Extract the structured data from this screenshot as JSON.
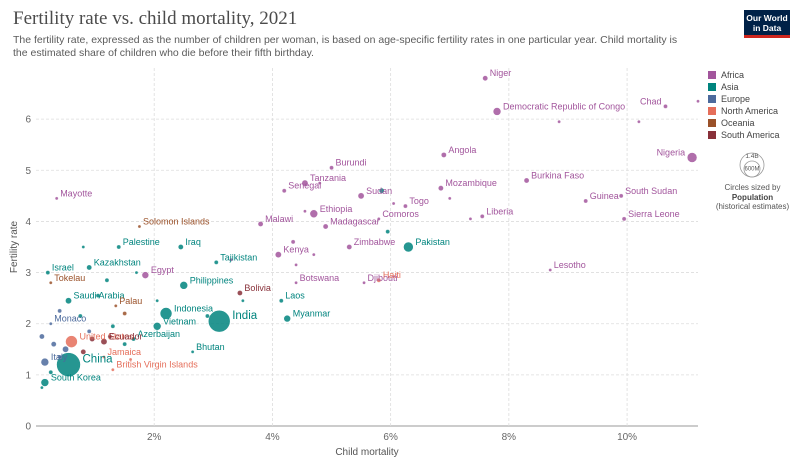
{
  "header": {
    "title": "Fertility rate vs. child mortality, 2021",
    "subtitle": "The fertility rate, expressed as the number of children per woman, is based on age-specific fertility rates in one particular year. Child mortality is the estimated share of children who die before their fifth birthday.",
    "logo_line1": "Our World",
    "logo_line2": "in Data"
  },
  "legend": {
    "items": [
      {
        "label": "Africa",
        "color": "#a2559c"
      },
      {
        "label": "Asia",
        "color": "#00847e"
      },
      {
        "label": "Europe",
        "color": "#4c6a9c"
      },
      {
        "label": "North America",
        "color": "#e56e5a"
      },
      {
        "label": "Oceania",
        "color": "#9a5129"
      },
      {
        "label": "South America",
        "color": "#883039"
      }
    ],
    "size_big": "1.4B",
    "size_small": "600M",
    "size_caption": "Circles sized by",
    "size_var": "Population",
    "size_note": "(historical estimates)"
  },
  "chart_data": {
    "type": "scatter",
    "xlabel": "Child mortality",
    "ylabel": "Fertility rate",
    "xlim": [
      0.0,
      11.2
    ],
    "ylim": [
      0,
      7
    ],
    "xticks": [
      {
        "value": 2,
        "label": "2%"
      },
      {
        "value": 4,
        "label": "4%"
      },
      {
        "value": 6,
        "label": "6%"
      },
      {
        "value": 8,
        "label": "8%"
      },
      {
        "value": 10,
        "label": "10%"
      }
    ],
    "yticks": [
      0,
      1,
      2,
      3,
      4,
      5,
      6
    ],
    "grid": true,
    "points": [
      {
        "label": "Niger",
        "x": 7.6,
        "y": 6.8,
        "r": 2.5,
        "region": "Africa"
      },
      {
        "label": "Democratic Republic of Congo",
        "x": 7.8,
        "y": 6.15,
        "r": 4,
        "region": "Africa"
      },
      {
        "label": "Chad",
        "x": 10.65,
        "y": 6.25,
        "r": 2,
        "region": "Africa"
      },
      {
        "label": "Nigeria",
        "x": 11.1,
        "y": 5.25,
        "r": 5,
        "region": "Africa"
      },
      {
        "label": "Angola",
        "x": 6.9,
        "y": 5.3,
        "r": 2.5,
        "region": "Africa"
      },
      {
        "label": "Burundi",
        "x": 5.0,
        "y": 5.05,
        "r": 2,
        "region": "Africa"
      },
      {
        "label": "Burkina Faso",
        "x": 8.3,
        "y": 4.8,
        "r": 2.5,
        "region": "Africa"
      },
      {
        "label": "Tanzania",
        "x": 4.55,
        "y": 4.75,
        "r": 3,
        "region": "Africa"
      },
      {
        "label": "Mozambique",
        "x": 6.85,
        "y": 4.65,
        "r": 2.5,
        "region": "Africa"
      },
      {
        "label": "Sudan",
        "x": 5.5,
        "y": 4.5,
        "r": 3,
        "region": "Africa"
      },
      {
        "label": "Senegal",
        "x": 4.2,
        "y": 4.6,
        "r": 2,
        "region": "Africa"
      },
      {
        "label": "Mayotte",
        "x": 0.35,
        "y": 4.45,
        "r": 1.5,
        "region": "Africa"
      },
      {
        "label": "Guinea",
        "x": 9.3,
        "y": 4.4,
        "r": 2,
        "region": "Africa"
      },
      {
        "label": "South Sudan",
        "x": 9.9,
        "y": 4.5,
        "r": 2,
        "region": "Africa"
      },
      {
        "label": "Togo",
        "x": 6.25,
        "y": 4.3,
        "r": 2,
        "region": "Africa"
      },
      {
        "label": "Ethiopia",
        "x": 4.7,
        "y": 4.15,
        "r": 4,
        "region": "Africa"
      },
      {
        "label": "Liberia",
        "x": 7.55,
        "y": 4.1,
        "r": 2,
        "region": "Africa"
      },
      {
        "label": "Comoros",
        "x": 5.8,
        "y": 4.05,
        "r": 1.5,
        "region": "Africa"
      },
      {
        "label": "Malawi",
        "x": 3.8,
        "y": 3.95,
        "r": 2.5,
        "region": "Africa"
      },
      {
        "label": "Madagascar",
        "x": 4.9,
        "y": 3.9,
        "r": 2.5,
        "region": "Africa"
      },
      {
        "label": "Sierra Leone",
        "x": 9.95,
        "y": 4.05,
        "r": 2,
        "region": "Africa"
      },
      {
        "label": "Zimbabwe",
        "x": 5.3,
        "y": 3.5,
        "r": 2.5,
        "region": "Africa"
      },
      {
        "label": "Kenya",
        "x": 4.1,
        "y": 3.35,
        "r": 3,
        "region": "Africa"
      },
      {
        "label": "Egypt",
        "x": 1.85,
        "y": 2.95,
        "r": 3.5,
        "region": "Africa"
      },
      {
        "label": "Lesotho",
        "x": 8.7,
        "y": 3.05,
        "r": 1.5,
        "region": "Africa"
      },
      {
        "label": "Botswana",
        "x": 4.4,
        "y": 2.8,
        "r": 1.5,
        "region": "Africa"
      },
      {
        "label": "Djibouti",
        "x": 5.55,
        "y": 2.8,
        "r": 1.5,
        "region": "Africa"
      },
      {
        "label": "Pakistan",
        "x": 6.3,
        "y": 3.5,
        "r": 5,
        "region": "Asia"
      },
      {
        "label": "India",
        "x": 3.1,
        "y": 2.05,
        "r": 11,
        "region": "Asia"
      },
      {
        "label": "China",
        "x": 0.55,
        "y": 1.2,
        "r": 12,
        "region": "Asia"
      },
      {
        "label": "Indonesia",
        "x": 2.2,
        "y": 2.2,
        "r": 6,
        "region": "Asia"
      },
      {
        "label": "Philippines",
        "x": 2.5,
        "y": 2.75,
        "r": 4,
        "region": "Asia"
      },
      {
        "label": "Iraq",
        "x": 2.45,
        "y": 3.5,
        "r": 2.5,
        "region": "Asia"
      },
      {
        "label": "Tajikistan",
        "x": 3.05,
        "y": 3.2,
        "r": 2,
        "region": "Asia"
      },
      {
        "label": "Kazakhstan",
        "x": 0.9,
        "y": 3.1,
        "r": 2.5,
        "region": "Asia"
      },
      {
        "label": "Palestine",
        "x": 1.4,
        "y": 3.5,
        "r": 2,
        "region": "Asia"
      },
      {
        "label": "Israel",
        "x": 0.2,
        "y": 3.0,
        "r": 2,
        "region": "Asia"
      },
      {
        "label": "Saudi Arabia",
        "x": 0.55,
        "y": 2.45,
        "r": 3,
        "region": "Asia"
      },
      {
        "label": "Laos",
        "x": 4.15,
        "y": 2.45,
        "r": 2,
        "region": "Asia"
      },
      {
        "label": "Myanmar",
        "x": 4.25,
        "y": 2.1,
        "r": 3.5,
        "region": "Asia"
      },
      {
        "label": "Vietnam",
        "x": 2.05,
        "y": 1.95,
        "r": 4,
        "region": "Asia"
      },
      {
        "label": "Azerbaijan",
        "x": 1.65,
        "y": 1.7,
        "r": 2,
        "region": "Asia"
      },
      {
        "label": "Bhutan",
        "x": 2.65,
        "y": 1.45,
        "r": 1.5,
        "region": "Asia"
      },
      {
        "label": "South Korea",
        "x": 0.15,
        "y": 0.85,
        "r": 4,
        "region": "Asia"
      },
      {
        "label": "Monaco",
        "x": 0.25,
        "y": 2.0,
        "r": 1.5,
        "region": "Europe"
      },
      {
        "label": "Italy",
        "x": 0.15,
        "y": 1.25,
        "r": 4,
        "region": "Europe"
      },
      {
        "label": "United States",
        "x": 0.6,
        "y": 1.65,
        "r": 6,
        "region": "North America"
      },
      {
        "label": "Jamaica",
        "x": 1.15,
        "y": 1.35,
        "r": 1.5,
        "region": "North America"
      },
      {
        "label": "Haiti",
        "x": 5.8,
        "y": 2.85,
        "r": 2,
        "region": "North America"
      },
      {
        "label": "British Virgin Islands",
        "x": 1.3,
        "y": 1.1,
        "r": 1.5,
        "region": "North America"
      },
      {
        "label": "Solomon Islands",
        "x": 1.75,
        "y": 3.9,
        "r": 1.5,
        "region": "Oceania"
      },
      {
        "label": "Tokelau",
        "x": 0.25,
        "y": 2.8,
        "r": 1.5,
        "region": "Oceania"
      },
      {
        "label": "Palau",
        "x": 1.35,
        "y": 2.35,
        "r": 1.5,
        "region": "Oceania"
      },
      {
        "label": "Bolivia",
        "x": 3.45,
        "y": 2.6,
        "r": 2.5,
        "region": "South America"
      },
      {
        "label": "Ecuador",
        "x": 1.15,
        "y": 1.65,
        "r": 3,
        "region": "South America"
      },
      {
        "label": "",
        "x": 8.85,
        "y": 5.95,
        "r": 1.5,
        "region": "Africa"
      },
      {
        "label": "",
        "x": 10.2,
        "y": 5.95,
        "r": 1.5,
        "region": "Africa"
      },
      {
        "label": "",
        "x": 11.2,
        "y": 6.35,
        "r": 1.5,
        "region": "Africa"
      },
      {
        "label": "",
        "x": 4.8,
        "y": 4.75,
        "r": 1.5,
        "region": "Africa"
      },
      {
        "label": "",
        "x": 5.85,
        "y": 4.6,
        "r": 2.5,
        "region": "Asia"
      },
      {
        "label": "",
        "x": 6.05,
        "y": 4.35,
        "r": 1.5,
        "region": "Africa"
      },
      {
        "label": "",
        "x": 7.0,
        "y": 4.45,
        "r": 1.5,
        "region": "Africa"
      },
      {
        "label": "",
        "x": 7.35,
        "y": 4.05,
        "r": 1.5,
        "region": "Africa"
      },
      {
        "label": "",
        "x": 5.95,
        "y": 3.8,
        "r": 2,
        "region": "Asia"
      },
      {
        "label": "",
        "x": 4.35,
        "y": 3.6,
        "r": 2,
        "region": "Africa"
      },
      {
        "label": "",
        "x": 4.7,
        "y": 3.35,
        "r": 1.5,
        "region": "Africa"
      },
      {
        "label": "",
        "x": 3.3,
        "y": 3.25,
        "r": 1.5,
        "region": "Africa"
      },
      {
        "label": "",
        "x": 3.5,
        "y": 2.45,
        "r": 1.5,
        "region": "Asia"
      },
      {
        "label": "",
        "x": 0.8,
        "y": 3.5,
        "r": 1.5,
        "region": "Asia"
      },
      {
        "label": "",
        "x": 1.7,
        "y": 3.0,
        "r": 1.5,
        "region": "Asia"
      },
      {
        "label": "",
        "x": 1.2,
        "y": 2.85,
        "r": 2,
        "region": "Asia"
      },
      {
        "label": "",
        "x": 1.05,
        "y": 2.55,
        "r": 2,
        "region": "Asia"
      },
      {
        "label": "",
        "x": 0.4,
        "y": 2.25,
        "r": 2,
        "region": "Europe"
      },
      {
        "label": "",
        "x": 0.75,
        "y": 2.15,
        "r": 2,
        "region": "Asia"
      },
      {
        "label": "",
        "x": 1.5,
        "y": 2.2,
        "r": 2,
        "region": "Oceania"
      },
      {
        "label": "",
        "x": 1.3,
        "y": 1.95,
        "r": 2,
        "region": "Asia"
      },
      {
        "label": "",
        "x": 0.9,
        "y": 1.85,
        "r": 2,
        "region": "Europe"
      },
      {
        "label": "",
        "x": 0.1,
        "y": 1.75,
        "r": 2.5,
        "region": "Europe"
      },
      {
        "label": "",
        "x": 0.3,
        "y": 1.6,
        "r": 2.5,
        "region": "Europe"
      },
      {
        "label": "",
        "x": 0.5,
        "y": 1.5,
        "r": 3,
        "region": "Europe"
      },
      {
        "label": "",
        "x": 0.8,
        "y": 1.45,
        "r": 2.5,
        "region": "South America"
      },
      {
        "label": "",
        "x": 0.95,
        "y": 1.7,
        "r": 2.5,
        "region": "South America"
      },
      {
        "label": "",
        "x": 1.25,
        "y": 1.75,
        "r": 2,
        "region": "South America"
      },
      {
        "label": "",
        "x": 1.5,
        "y": 1.6,
        "r": 2,
        "region": "Asia"
      },
      {
        "label": "",
        "x": 0.25,
        "y": 1.05,
        "r": 2,
        "region": "Asia"
      },
      {
        "label": "",
        "x": 0.1,
        "y": 0.75,
        "r": 1.5,
        "region": "Asia"
      },
      {
        "label": "",
        "x": 0.4,
        "y": 1.35,
        "r": 2,
        "region": "Europe"
      },
      {
        "label": "",
        "x": 1.6,
        "y": 1.3,
        "r": 1.5,
        "region": "North America"
      },
      {
        "label": "",
        "x": 2.05,
        "y": 2.45,
        "r": 1.5,
        "region": "Asia"
      },
      {
        "label": "",
        "x": 2.9,
        "y": 2.15,
        "r": 2,
        "region": "Asia"
      },
      {
        "label": "",
        "x": 4.55,
        "y": 4.2,
        "r": 1.5,
        "region": "Africa"
      },
      {
        "label": "",
        "x": 4.4,
        "y": 3.15,
        "r": 1.5,
        "region": "Africa"
      }
    ]
  }
}
